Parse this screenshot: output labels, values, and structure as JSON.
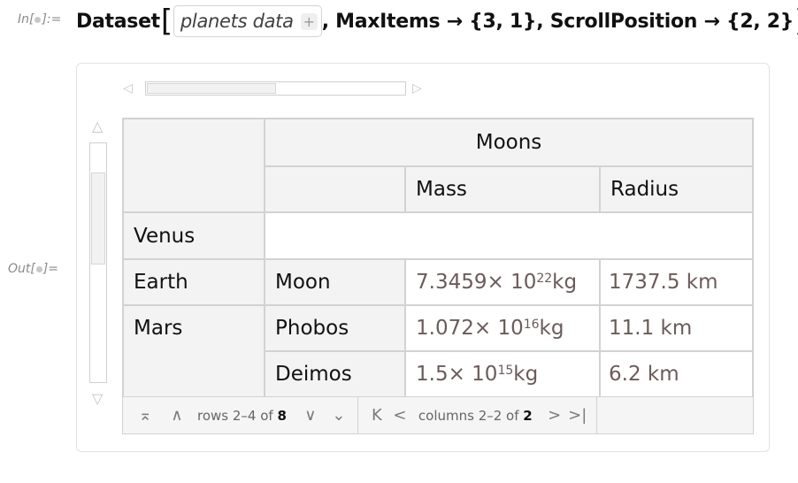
{
  "input": {
    "label": "In[",
    "label_end": "]:=",
    "head": "Dataset",
    "chip_text": "planets data",
    "chip_plus": "+",
    "options": ", MaxItems → {3, 1}, ScrollPosition → {2, 2}"
  },
  "output": {
    "label": "Out[",
    "label_end": "]="
  },
  "scroll": {
    "left_arrow": "◁",
    "right_arrow": "▷",
    "up_arrow": "△",
    "down_arrow": "▽"
  },
  "table": {
    "group_header": "Moons",
    "col_headers": [
      "Mass",
      "Radius"
    ],
    "rows": [
      {
        "planet": "Venus"
      },
      {
        "planet": "Earth",
        "moon": "Moon",
        "mass_mantissa": "7.3459",
        "mass_exp": "22",
        "radius": "1737.5 km"
      },
      {
        "planet": "Mars",
        "moon": "Phobos",
        "mass_mantissa": "1.072",
        "mass_exp": "16",
        "radius": "11.1 km"
      },
      {
        "moon": "Deimos",
        "mass_mantissa": "1.5",
        "mass_exp": "15",
        "radius": "6.2 km"
      }
    ],
    "times_ten": " × 10",
    "mass_unit": " kg"
  },
  "footer": {
    "rows_text": "rows 2–4 of ",
    "rows_total": "8",
    "cols_text": "columns 2–2 of ",
    "cols_total": "2",
    "icons": {
      "first": "⌅",
      "prev": "∧",
      "next": "∨",
      "last": "⌄",
      "col_first": "K",
      "col_prev": "<",
      "col_next": ">",
      "col_last": ">|"
    }
  }
}
